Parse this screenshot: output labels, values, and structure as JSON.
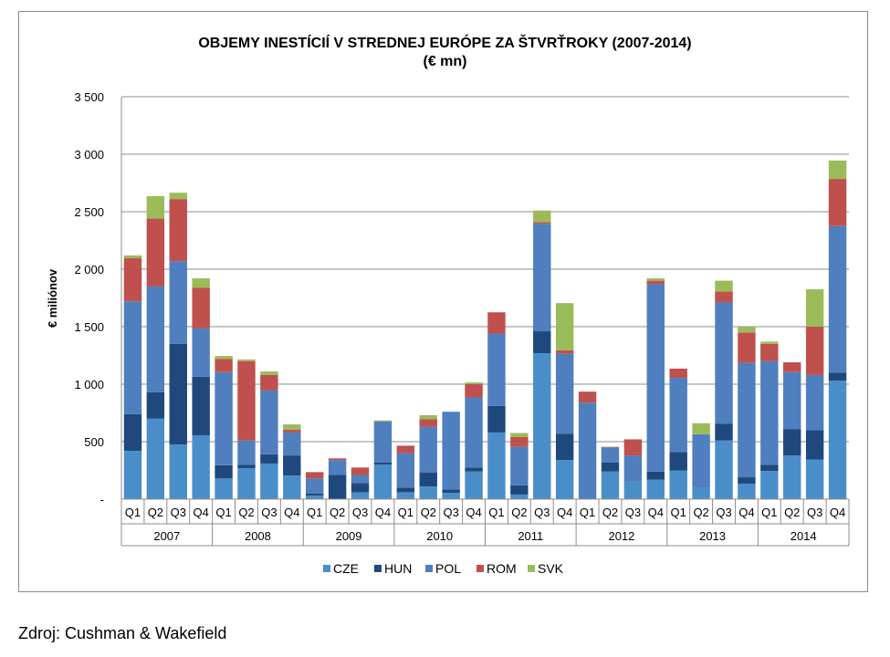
{
  "chart_data": {
    "type": "bar",
    "stacked": true,
    "title": "OBJEMY INESTÍCIÍ V STREDNEJ EURÓPE ZA ŠTVRŤROKY (2007-2014)",
    "subtitle": "(€ mn)",
    "ylabel": "€ miliónov",
    "xlabel": "",
    "ylim": [
      0,
      3500
    ],
    "yticks": [
      0,
      500,
      1000,
      1500,
      2000,
      2500,
      3000,
      3500
    ],
    "ytick_labels": [
      "-",
      "500",
      "1 000",
      "1 500",
      "2 000",
      "2 500",
      "3 000",
      "3 500"
    ],
    "grid": true,
    "legend_position": "bottom",
    "years": [
      "2007",
      "2008",
      "2009",
      "2010",
      "2011",
      "2012",
      "2013",
      "2014"
    ],
    "quarters": [
      "Q1",
      "Q2",
      "Q3",
      "Q4"
    ],
    "series": [
      {
        "name": "CZE",
        "color": "#4a8ec9",
        "values": [
          420,
          700,
          475,
          555,
          180,
          270,
          310,
          205,
          30,
          0,
          60,
          300,
          60,
          110,
          55,
          240,
          580,
          40,
          1270,
          340,
          0,
          240,
          150,
          170,
          250,
          100,
          510,
          135,
          245,
          380,
          345,
          1030
        ]
      },
      {
        "name": "HUN",
        "color": "#1f497d",
        "values": [
          320,
          230,
          875,
          510,
          115,
          30,
          80,
          175,
          20,
          210,
          80,
          20,
          40,
          120,
          30,
          35,
          230,
          80,
          190,
          230,
          0,
          80,
          0,
          70,
          160,
          0,
          145,
          55,
          55,
          230,
          255,
          70
        ]
      },
      {
        "name": "POL",
        "color": "#4f7fbe",
        "values": [
          980,
          920,
          720,
          420,
          810,
          210,
          555,
          200,
          130,
          130,
          70,
          355,
          300,
          400,
          675,
          610,
          630,
          335,
          935,
          695,
          840,
          130,
          230,
          1630,
          645,
          465,
          1055,
          995,
          900,
          495,
          480,
          1275
        ]
      },
      {
        "name": "ROM",
        "color": "#c0504d",
        "values": [
          375,
          590,
          540,
          355,
          115,
          690,
          135,
          25,
          55,
          15,
          65,
          0,
          65,
          65,
          0,
          115,
          185,
          85,
          15,
          30,
          95,
          5,
          140,
          30,
          80,
          0,
          95,
          265,
          150,
          85,
          420,
          410
        ]
      },
      {
        "name": "SVK",
        "color": "#9bbb59",
        "values": [
          25,
          195,
          55,
          80,
          25,
          15,
          30,
          45,
          0,
          0,
          0,
          10,
          0,
          35,
          0,
          15,
          0,
          35,
          100,
          410,
          0,
          0,
          0,
          20,
          0,
          95,
          95,
          45,
          20,
          0,
          325,
          160
        ]
      }
    ]
  },
  "source": "Zdroj: Cushman & Wakefield"
}
